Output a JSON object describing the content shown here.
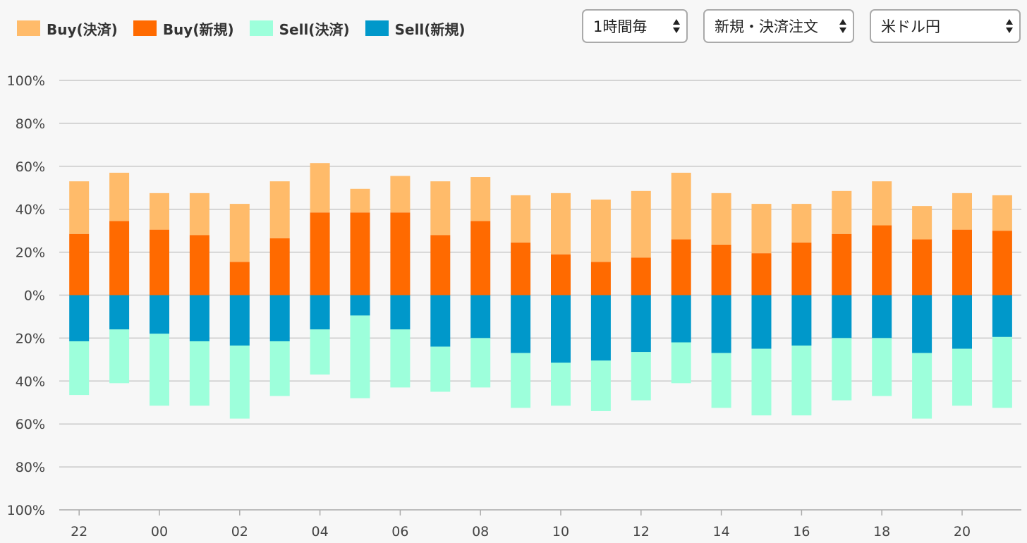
{
  "legend": [
    {
      "label": "Buy(決済)",
      "color": "#ffbb6a"
    },
    {
      "label": "Buy(新規)",
      "color": "#ff6a00"
    },
    {
      "label": "Sell(決済)",
      "color": "#9dffdb"
    },
    {
      "label": "Sell(新規)",
      "color": "#0098ca"
    }
  ],
  "controls": {
    "interval": "1時間毎",
    "order_type": "新規・決済注文",
    "currency_pair": "米ドル円"
  },
  "chart_data": {
    "type": "bar",
    "stacked": true,
    "grid": true,
    "legend_position": "top-left",
    "y_tick_labels": [
      "100%",
      "80%",
      "60%",
      "40%",
      "20%",
      "0%",
      "20%",
      "40%",
      "60%",
      "80%",
      "100%"
    ],
    "ylim": [
      -100,
      100
    ],
    "x_tick_labels": [
      "22",
      "00",
      "02",
      "04",
      "06",
      "08",
      "10",
      "12",
      "14",
      "16",
      "18",
      "20"
    ],
    "categories": [
      "22",
      "23",
      "00",
      "01",
      "02",
      "03",
      "04",
      "05",
      "06",
      "07",
      "08",
      "09",
      "10",
      "11",
      "12",
      "13",
      "14",
      "15",
      "16",
      "17",
      "18",
      "19",
      "20",
      "21"
    ],
    "series": [
      {
        "name": "Buy(新規)",
        "color": "#ff6a00",
        "values": [
          28.5,
          34.5,
          30.5,
          28,
          15.5,
          26.5,
          38.5,
          38.5,
          38.5,
          28,
          34.5,
          24.5,
          19,
          15.5,
          17.5,
          26,
          23.5,
          19.5,
          24.5,
          28.5,
          32.5,
          26,
          30.5,
          30
        ]
      },
      {
        "name": "Buy(決済)",
        "color": "#ffbb6a",
        "values": [
          24.5,
          22.5,
          17,
          19.5,
          27,
          26.5,
          23,
          11,
          17,
          25,
          20.5,
          22,
          28.5,
          29,
          31,
          31,
          24,
          23,
          18,
          20,
          20.5,
          15.5,
          17,
          16.5
        ]
      },
      {
        "name": "Sell(新規)",
        "color": "#0098ca",
        "values": [
          -21.5,
          -16,
          -18,
          -21.5,
          -23.5,
          -21.5,
          -16,
          -9.5,
          -16,
          -24,
          -20,
          -27,
          -31.5,
          -30.5,
          -26.5,
          -22,
          -27,
          -25,
          -23.5,
          -20,
          -20,
          -27,
          -25,
          -19.5
        ]
      },
      {
        "name": "Sell(決済)",
        "color": "#9dffdb",
        "values": [
          -25,
          -25,
          -33.5,
          -30,
          -34,
          -25.5,
          -21,
          -38.5,
          -27,
          -21,
          -23,
          -25.5,
          -20,
          -23.5,
          -22.5,
          -19,
          -25.5,
          -31,
          -32.5,
          -29,
          -27,
          -30.5,
          -26.5,
          -33
        ]
      }
    ]
  }
}
